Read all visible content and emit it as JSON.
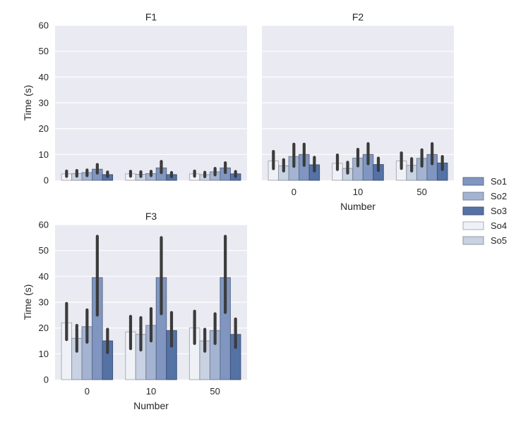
{
  "chart_data": {
    "type": "bar",
    "layout": "facet-grid",
    "hue_order": [
      "So4",
      "So5",
      "So2",
      "So1",
      "So3"
    ],
    "colors": {
      "So1": "#8096c0",
      "So2": "#a3b3d1",
      "So3": "#5572a6",
      "So4": "#eef1f6",
      "So5": "#c8d2e2"
    },
    "legend": {
      "position": "right",
      "entries": [
        "So1",
        "So2",
        "So3",
        "So4",
        "So5"
      ]
    },
    "categories": [
      "0",
      "10",
      "50"
    ],
    "ylim": [
      0,
      60
    ],
    "yticks": [
      "0",
      "10",
      "20",
      "30",
      "40",
      "50",
      "60"
    ],
    "grid": true,
    "panels": [
      {
        "title": "F1",
        "ylabel": "Time (s)",
        "xlabel": "",
        "show_xticks": false,
        "show_yticks": true,
        "series": [
          {
            "name": "So4",
            "values": [
              2.5,
              2.5,
              2.5
            ],
            "err_low": [
              1.5,
              1.6,
              1.6
            ],
            "err_high": [
              3.6,
              3.5,
              3.6
            ]
          },
          {
            "name": "So5",
            "values": [
              2.6,
              2.3,
              2.2
            ],
            "err_low": [
              1.6,
              1.5,
              1.4
            ],
            "err_high": [
              3.8,
              3.3,
              3.1
            ]
          },
          {
            "name": "So2",
            "values": [
              3.0,
              2.6,
              3.3
            ],
            "err_low": [
              1.8,
              1.8,
              2.1
            ],
            "err_high": [
              4.0,
              3.5,
              4.6
            ]
          },
          {
            "name": "So1",
            "values": [
              4.3,
              4.8,
              4.8
            ],
            "err_low": [
              2.8,
              3.0,
              3.0
            ],
            "err_high": [
              6.1,
              7.3,
              6.8
            ]
          },
          {
            "name": "So3",
            "values": [
              2.2,
              2.2,
              2.5
            ],
            "err_low": [
              1.5,
              1.4,
              1.5
            ],
            "err_high": [
              3.2,
              3.0,
              3.4
            ]
          }
        ]
      },
      {
        "title": "F2",
        "ylabel": "",
        "xlabel": "Number",
        "show_xticks": true,
        "show_yticks": false,
        "series": [
          {
            "name": "So4",
            "values": [
              7.5,
              6.6,
              7.5
            ],
            "err_low": [
              4.5,
              4.2,
              4.6
            ],
            "err_high": [
              11.2,
              9.8,
              10.6
            ]
          },
          {
            "name": "So5",
            "values": [
              5.6,
              4.6,
              5.8
            ],
            "err_low": [
              3.6,
              2.8,
              3.6
            ],
            "err_high": [
              8.0,
              7.0,
              8.4
            ]
          },
          {
            "name": "So2",
            "values": [
              9.2,
              8.6,
              8.5
            ],
            "err_low": [
              5.4,
              5.6,
              5.5
            ],
            "err_high": [
              14.0,
              12.0,
              11.8
            ]
          },
          {
            "name": "So1",
            "values": [
              10.0,
              10.0,
              10.0
            ],
            "err_low": [
              5.8,
              6.4,
              6.4
            ],
            "err_high": [
              14.0,
              14.2,
              14.2
            ]
          },
          {
            "name": "So3",
            "values": [
              6.0,
              6.1,
              6.7
            ],
            "err_low": [
              3.6,
              3.8,
              4.2
            ],
            "err_high": [
              8.9,
              8.6,
              9.2
            ]
          }
        ]
      },
      {
        "title": "F3",
        "ylabel": "Time (s)",
        "xlabel": "Number",
        "show_xticks": true,
        "show_yticks": true,
        "series": [
          {
            "name": "So4",
            "values": [
              22.0,
              18.5,
              20.0
            ],
            "err_low": [
              15.5,
              12.0,
              14.0
            ],
            "err_high": [
              29.5,
              24.5,
              26.5
            ]
          },
          {
            "name": "So5",
            "values": [
              16.0,
              17.5,
              15.0
            ],
            "err_low": [
              11.0,
              11.5,
              11.0
            ],
            "err_high": [
              21.0,
              24.0,
              19.5
            ]
          },
          {
            "name": "So2",
            "values": [
              20.5,
              21.0,
              19.0
            ],
            "err_low": [
              14.5,
              15.0,
              14.0
            ],
            "err_high": [
              27.0,
              27.5,
              25.5
            ]
          },
          {
            "name": "So1",
            "values": [
              39.5,
              39.5,
              39.5
            ],
            "err_low": [
              25.0,
              25.5,
              26.0
            ],
            "err_high": [
              55.5,
              55.0,
              55.5
            ]
          },
          {
            "name": "So3",
            "values": [
              15.0,
              19.0,
              17.5
            ],
            "err_low": [
              10.5,
              13.0,
              12.5
            ],
            "err_high": [
              19.5,
              26.0,
              23.5
            ]
          }
        ]
      }
    ]
  }
}
